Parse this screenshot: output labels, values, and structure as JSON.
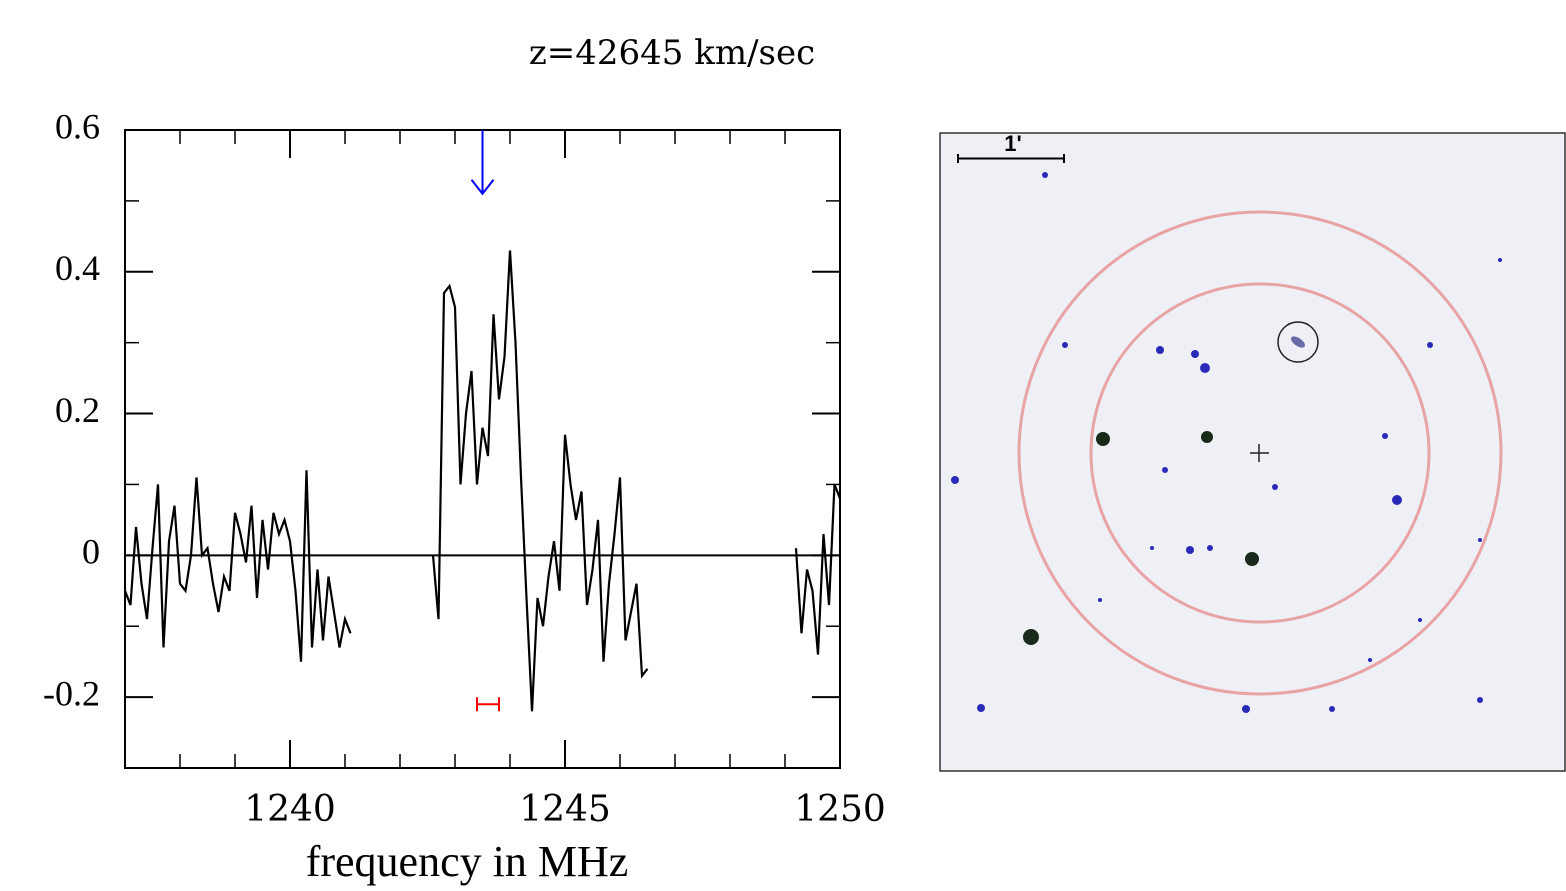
{
  "chart_data": {
    "type": "line",
    "title": "z=42645 km/sec",
    "xlabel": "frequency in MHz",
    "xlim": [
      1237,
      1250
    ],
    "ylim": [
      -0.3,
      0.6
    ],
    "xticks": [
      1240,
      1245,
      1250
    ],
    "xminorticks": [
      1238,
      1239,
      1241,
      1242,
      1243,
      1244,
      1246,
      1247,
      1248,
      1249
    ],
    "yticks": [
      {
        "value": -0.2,
        "label": "-0.2"
      },
      0,
      0.2,
      0.4,
      0.6
    ],
    "yminorticks": [
      -0.1,
      0.1,
      0.3,
      0.5
    ],
    "hline": 0,
    "color": "#000000",
    "arrow": {
      "x": 1243.5,
      "y": 0.51,
      "color": "#0000ff"
    },
    "error_bar": {
      "x": 1243.6,
      "y": -0.21,
      "xerr": 0.2,
      "color": "#ff0000"
    },
    "x": [
      1237.0,
      1237.1,
      1237.2,
      1237.3,
      1237.4,
      1237.5,
      1237.6,
      1237.7,
      1237.8,
      1237.9,
      1238.0,
      1238.1,
      1238.2,
      1238.3,
      1238.4,
      1238.5,
      1238.6,
      1238.7,
      1238.8,
      1238.9,
      1239.0,
      1239.1,
      1239.2,
      1239.3,
      1239.4,
      1239.5,
      1239.6,
      1239.7,
      1239.8,
      1239.9,
      1240.0,
      1240.1,
      1240.2,
      1240.3,
      1240.4,
      1240.5,
      1240.6,
      1240.7,
      1240.8,
      1240.9,
      1241.0,
      1241.1,
      1241.5,
      1242.6,
      1242.7,
      1242.8,
      1242.9,
      1243.0,
      1243.1,
      1243.2,
      1243.3,
      1243.4,
      1243.5,
      1243.6,
      1243.7,
      1243.8,
      1243.9,
      1244.0,
      1244.1,
      1244.2,
      1244.3,
      1244.4,
      1244.5,
      1244.6,
      1244.7,
      1244.8,
      1244.9,
      1245.0,
      1245.1,
      1245.2,
      1245.3,
      1245.4,
      1245.5,
      1245.6,
      1245.7,
      1245.8,
      1245.9,
      1246.0,
      1246.1,
      1246.2,
      1246.3,
      1246.4,
      1246.5,
      1248.0,
      1249.2,
      1249.3,
      1249.4,
      1249.5,
      1249.6,
      1249.7,
      1249.8,
      1249.9,
      1250.0
    ],
    "values": [
      -0.05,
      -0.07,
      0.04,
      -0.04,
      -0.09,
      0.01,
      0.1,
      -0.13,
      0.02,
      0.07,
      -0.04,
      -0.05,
      0.0,
      0.11,
      0.0,
      0.01,
      -0.04,
      -0.08,
      -0.03,
      -0.05,
      0.06,
      0.03,
      -0.01,
      0.07,
      -0.06,
      0.05,
      -0.02,
      0.06,
      0.03,
      0.05,
      0.02,
      -0.05,
      -0.15,
      0.12,
      -0.13,
      -0.02,
      -0.12,
      -0.03,
      -0.08,
      -0.13,
      -0.09,
      -0.11,
      null,
      0.0,
      -0.09,
      0.37,
      0.38,
      0.35,
      0.1,
      0.2,
      0.26,
      0.1,
      0.18,
      0.14,
      0.34,
      0.22,
      0.28,
      0.43,
      0.3,
      0.11,
      -0.06,
      -0.22,
      -0.06,
      -0.1,
      -0.03,
      0.02,
      -0.05,
      0.17,
      0.1,
      0.05,
      0.09,
      -0.07,
      -0.02,
      0.05,
      -0.15,
      -0.04,
      0.03,
      0.11,
      -0.12,
      -0.08,
      -0.04,
      -0.17,
      -0.16,
      null,
      0.01,
      -0.11,
      -0.02,
      -0.05,
      -0.14,
      0.03,
      -0.07,
      0.1,
      0.08
    ]
  },
  "image": {
    "scale_label": "1'"
  }
}
